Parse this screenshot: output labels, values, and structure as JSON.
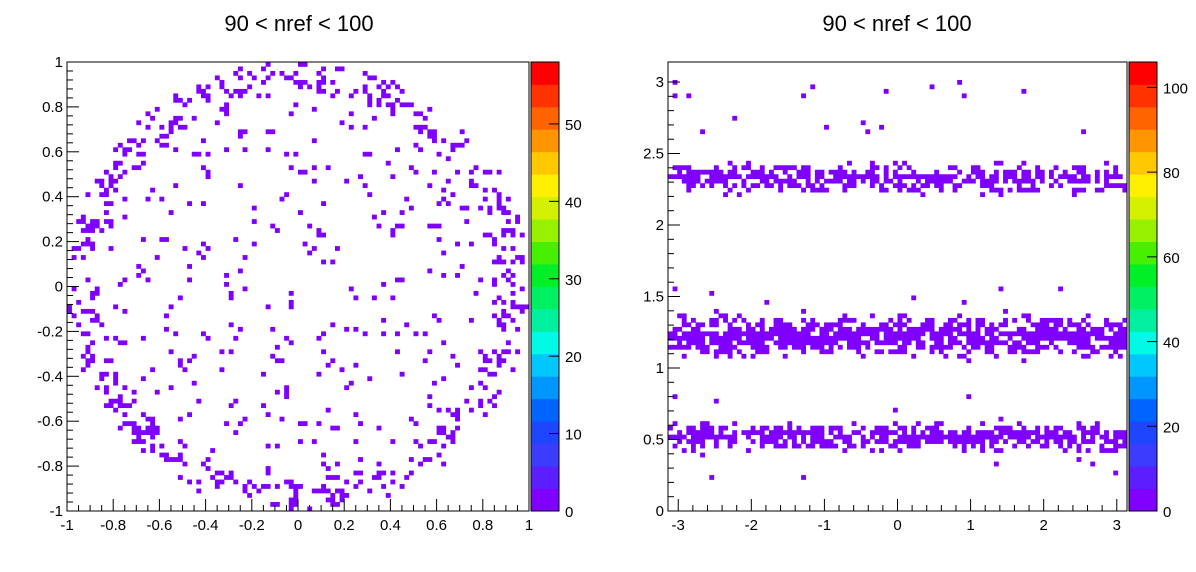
{
  "chart_data": [
    {
      "type": "heatmap",
      "title": "90 < nref < 100",
      "xlabel": "",
      "ylabel": "",
      "xlim": [
        -1,
        1
      ],
      "ylim": [
        -1,
        1
      ],
      "xticks": [
        -1,
        -0.8,
        -0.6,
        -0.4,
        -0.2,
        0,
        0.2,
        0.4,
        0.6,
        0.8,
        1
      ],
      "xtick_labels": [
        "-1",
        "-0.8",
        "-0.6",
        "-0.4",
        "-0.2",
        "0",
        "0.2",
        "0.4",
        "0.6",
        "0.8",
        "1"
      ],
      "yticks": [
        -1,
        -0.8,
        -0.6,
        -0.4,
        -0.2,
        0,
        0.2,
        0.4,
        0.6,
        0.8,
        1
      ],
      "ytick_labels": [
        "-1",
        "-0.8",
        "-0.6",
        "-0.4",
        "-0.2",
        "0",
        "0.2",
        "0.4",
        "0.6",
        "0.8",
        "1"
      ],
      "zlim": [
        0,
        58
      ],
      "zticks": [
        0,
        10,
        20,
        30,
        40,
        50
      ],
      "ztick_labels": [
        "0",
        "10",
        "20",
        "30",
        "40",
        "50"
      ],
      "bins": [
        100,
        100
      ],
      "cell_color": "#7f00ff",
      "pattern": "ring-of-points near the unit circle plus sparse inner points",
      "grid": false
    },
    {
      "type": "heatmap",
      "title": "90 < nref < 100",
      "xlabel": "",
      "ylabel": "",
      "xlim": [
        -3.14,
        3.14
      ],
      "ylim": [
        0,
        3.14
      ],
      "xticks": [
        -3,
        -2,
        -1,
        0,
        1,
        2,
        3
      ],
      "xtick_labels": [
        "-3",
        "-2",
        "-1",
        "0",
        "1",
        "2",
        "3"
      ],
      "yticks": [
        0,
        0.5,
        1,
        1.5,
        2,
        2.5,
        3
      ],
      "ytick_labels": [
        "0",
        "0.5",
        "1",
        "1.5",
        "2",
        "2.5",
        "3"
      ],
      "zlim": [
        0,
        106
      ],
      "zticks": [
        0,
        20,
        40,
        60,
        80,
        100
      ],
      "ztick_labels": [
        "0",
        "20",
        "40",
        "60",
        "80",
        "100"
      ],
      "bins": [
        100,
        50
      ],
      "cell_color": "#7f00ff",
      "bands": [
        {
          "center": 0.52,
          "halfwidth": 0.12
        },
        {
          "center": 1.22,
          "halfwidth": 0.17
        },
        {
          "center": 2.33,
          "halfwidth": 0.12
        }
      ],
      "grid": false
    }
  ],
  "palette": [
    "#7f00ff",
    "#5a1eff",
    "#3c3cff",
    "#1e46ff",
    "#0064ff",
    "#0096ff",
    "#00c8ff",
    "#00fae6",
    "#00f0a0",
    "#00f064",
    "#00f028",
    "#46f000",
    "#96f000",
    "#d2f000",
    "#fff000",
    "#ffc800",
    "#ff9600",
    "#ff6400",
    "#ff3200",
    "#ff0000"
  ]
}
